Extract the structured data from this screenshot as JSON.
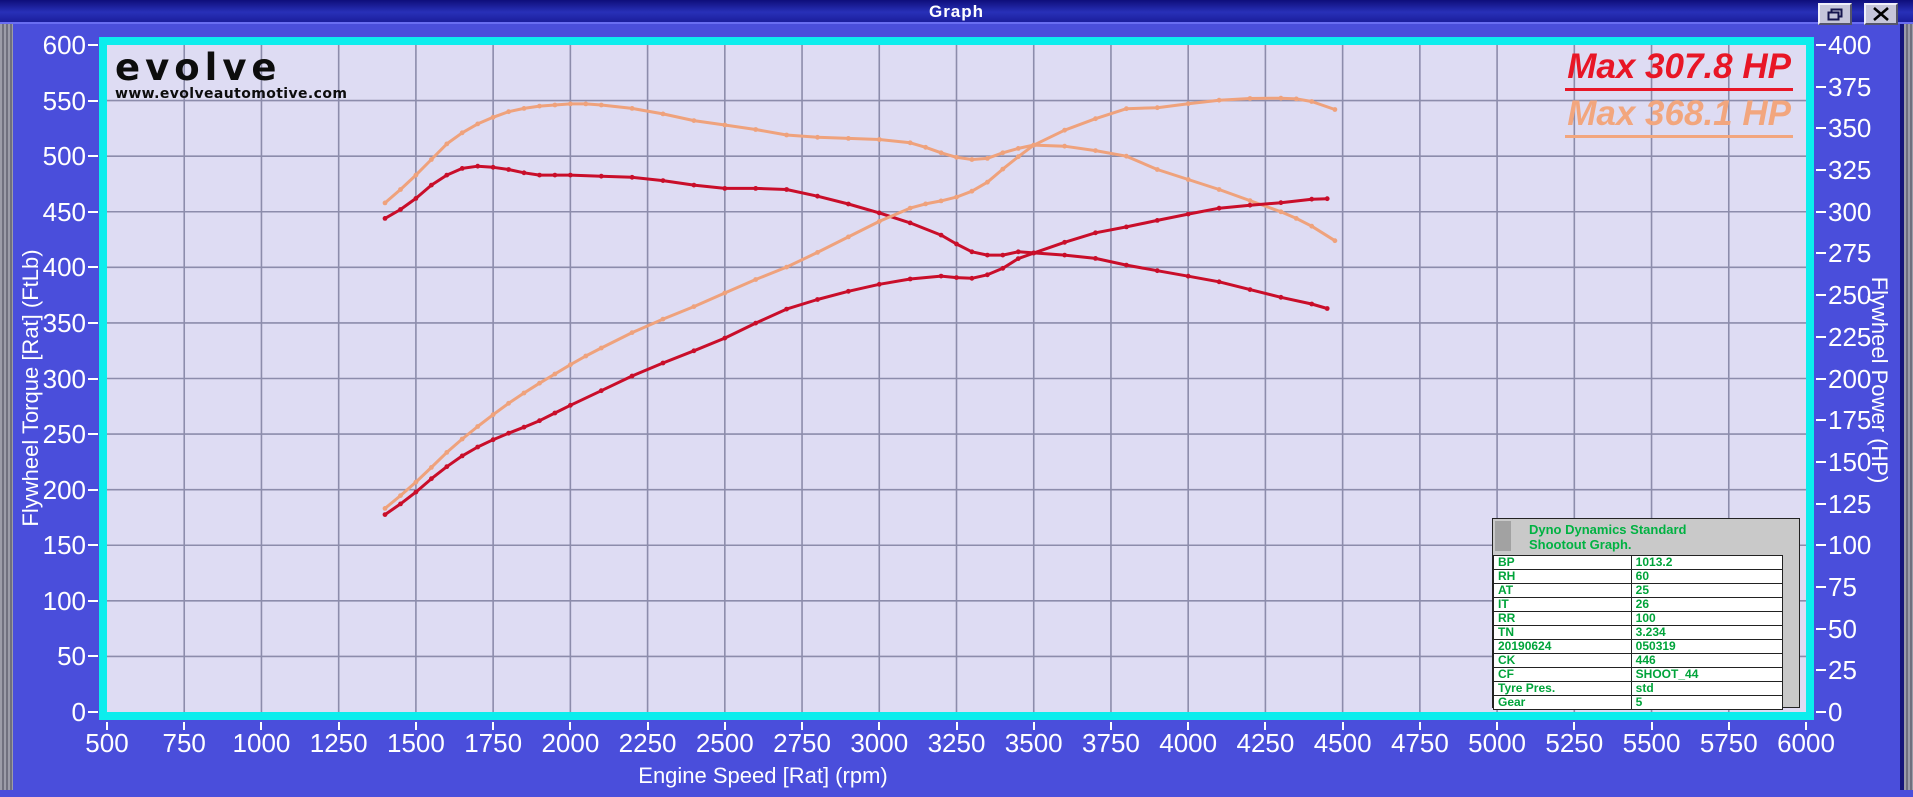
{
  "window": {
    "title": "Graph"
  },
  "branding": {
    "logo_text": "evolve",
    "website": "www.evolveautomotive.com"
  },
  "legend": [
    {
      "label": "Max 307.8 HP",
      "color": "#e81626"
    },
    {
      "label": "Max 368.1 HP",
      "color": "#f2a67e"
    }
  ],
  "axes": {
    "x": {
      "title": "Engine Speed [Rat] (rpm)",
      "min": 500,
      "max": 6000,
      "tick_step": 250,
      "ticks": [
        500,
        750,
        1000,
        1250,
        1500,
        1750,
        2000,
        2250,
        2500,
        2750,
        3000,
        3250,
        3500,
        3750,
        4000,
        4250,
        4500,
        4750,
        5000,
        5250,
        5500,
        5750,
        6000
      ]
    },
    "y_left": {
      "title": "Flywheel Torque [Rat] (FtLb)",
      "min": 0,
      "max": 600,
      "tick_step": 50,
      "ticks": [
        600,
        550,
        500,
        450,
        400,
        350,
        300,
        250,
        200,
        150,
        100,
        50,
        0
      ]
    },
    "y_right": {
      "title": "Flywheel Power (HP)",
      "min": 0,
      "max": 400,
      "tick_step": 25,
      "ticks": [
        400,
        375,
        350,
        325,
        300,
        275,
        250,
        225,
        200,
        175,
        150,
        125,
        100,
        75,
        50,
        25,
        0
      ]
    }
  },
  "info_panel": {
    "title_lines": [
      "Dyno Dynamics Standard",
      "Shootout Graph."
    ],
    "rows": [
      [
        "BP",
        "1013.2"
      ],
      [
        "RH",
        "60"
      ],
      [
        "AT",
        "25"
      ],
      [
        "IT",
        "26"
      ],
      [
        "RR",
        "100"
      ],
      [
        "TN",
        "3.234"
      ],
      [
        "20190624",
        "050319"
      ],
      [
        "CK",
        "446"
      ],
      [
        "CF",
        "SHOOT_44"
      ],
      [
        "Tyre Pres.",
        "std"
      ],
      [
        "Gear",
        "5"
      ]
    ]
  },
  "chart_data": {
    "type": "line",
    "title": "Dyno Dynamics Standard Shootout Graph",
    "xlabel": "Engine Speed [Rat] (rpm)",
    "ylabel_left": "Flywheel Torque [Rat] (FtLb)",
    "ylabel_right": "Flywheel Power (HP)",
    "xlim": [
      500,
      6000
    ],
    "ylim_left": [
      0,
      600
    ],
    "ylim_right": [
      0,
      400
    ],
    "grid": true,
    "grid_color": "#8c8cab",
    "plot_bg": "#dedcf3",
    "border_color": "#0ceded",
    "legend_position": "top-right",
    "series": [
      {
        "name": "Torque Run 1 (307.8 HP run)",
        "axis": "left",
        "units": "FtLb",
        "color": "#c90e2a",
        "x": [
          1400,
          1450,
          1500,
          1550,
          1600,
          1650,
          1700,
          1750,
          1800,
          1850,
          1900,
          1950,
          2000,
          2100,
          2200,
          2300,
          2400,
          2500,
          2600,
          2700,
          2800,
          2900,
          3000,
          3100,
          3200,
          3250,
          3300,
          3350,
          3400,
          3450,
          3500,
          3600,
          3700,
          3800,
          3900,
          4000,
          4100,
          4200,
          4300,
          4400,
          4450
        ],
        "values": [
          444,
          452,
          462,
          474,
          483,
          489,
          491,
          490,
          488,
          485,
          483,
          483,
          483,
          482,
          481,
          478,
          474,
          471,
          471,
          470,
          464,
          457,
          449,
          440,
          429,
          421,
          414,
          411,
          411,
          414,
          413,
          411,
          408,
          402,
          397,
          392,
          387,
          380,
          373,
          367,
          363
        ]
      },
      {
        "name": "Torque Run 2 (368.1 HP run)",
        "axis": "left",
        "units": "FtLb",
        "color": "#efa27c",
        "x": [
          1400,
          1450,
          1500,
          1550,
          1600,
          1650,
          1700,
          1750,
          1800,
          1850,
          1900,
          1950,
          2000,
          2050,
          2100,
          2200,
          2300,
          2400,
          2500,
          2600,
          2700,
          2800,
          2900,
          3000,
          3100,
          3150,
          3200,
          3250,
          3300,
          3350,
          3400,
          3450,
          3500,
          3600,
          3700,
          3800,
          3900,
          4000,
          4100,
          4200,
          4300,
          4350,
          4400,
          4475
        ],
        "values": [
          458,
          470,
          483,
          497,
          511,
          521,
          529,
          535,
          540,
          543,
          545,
          546,
          547,
          547,
          546,
          543,
          538,
          532,
          528,
          524,
          519,
          517,
          516,
          515,
          512,
          508,
          503,
          499,
          497,
          498,
          503,
          507,
          510,
          509,
          505,
          500,
          488,
          479,
          470,
          460,
          450,
          444,
          437,
          424
        ]
      },
      {
        "name": "Power Run 1 (Max 307.8 HP)",
        "axis": "right",
        "units": "HP",
        "color": "#c90e2a",
        "max": 307.8,
        "x": [
          1400,
          1450,
          1500,
          1550,
          1600,
          1650,
          1700,
          1750,
          1800,
          1850,
          1900,
          1950,
          2000,
          2100,
          2200,
          2300,
          2400,
          2500,
          2600,
          2700,
          2800,
          2900,
          3000,
          3100,
          3200,
          3250,
          3300,
          3350,
          3400,
          3450,
          3500,
          3600,
          3700,
          3800,
          3900,
          4000,
          4100,
          4200,
          4300,
          4400,
          4450
        ],
        "values": [
          118.4,
          124.8,
          131.9,
          139.9,
          147.1,
          153.6,
          158.9,
          163.3,
          167.2,
          170.8,
          174.7,
          179.3,
          183.9,
          192.7,
          201.5,
          209.3,
          216.6,
          224.2,
          233.2,
          241.6,
          247.4,
          252.3,
          256.5,
          259.7,
          261.4,
          260.5,
          260.1,
          262.2,
          266.1,
          271.9,
          275.2,
          281.7,
          287.4,
          290.9,
          294.8,
          298.6,
          302.1,
          303.9,
          305.4,
          307.5,
          307.8
        ]
      },
      {
        "name": "Power Run 2 (Max 368.1 HP)",
        "axis": "right",
        "units": "HP",
        "color": "#efa27c",
        "max": 368.1,
        "x": [
          1400,
          1450,
          1500,
          1550,
          1600,
          1650,
          1700,
          1750,
          1800,
          1850,
          1900,
          1950,
          2000,
          2050,
          2100,
          2200,
          2300,
          2400,
          2500,
          2600,
          2700,
          2800,
          2900,
          3000,
          3100,
          3150,
          3200,
          3250,
          3300,
          3350,
          3400,
          3450,
          3500,
          3600,
          3700,
          3800,
          3900,
          4000,
          4100,
          4200,
          4300,
          4350,
          4400,
          4475
        ],
        "values": [
          122.1,
          129.8,
          137.9,
          146.7,
          155.7,
          163.7,
          171.2,
          178.3,
          185.1,
          191.3,
          197.2,
          202.7,
          208.3,
          213.5,
          218.3,
          227.5,
          235.6,
          243.1,
          251.3,
          259.4,
          266.8,
          275.6,
          284.9,
          294.2,
          302.2,
          304.7,
          306.5,
          308.8,
          312.3,
          317.7,
          325.6,
          333.0,
          339.9,
          348.9,
          355.8,
          361.8,
          362.4,
          364.8,
          366.9,
          367.9,
          368.1,
          367.7,
          366.1,
          361.3
        ]
      }
    ]
  }
}
